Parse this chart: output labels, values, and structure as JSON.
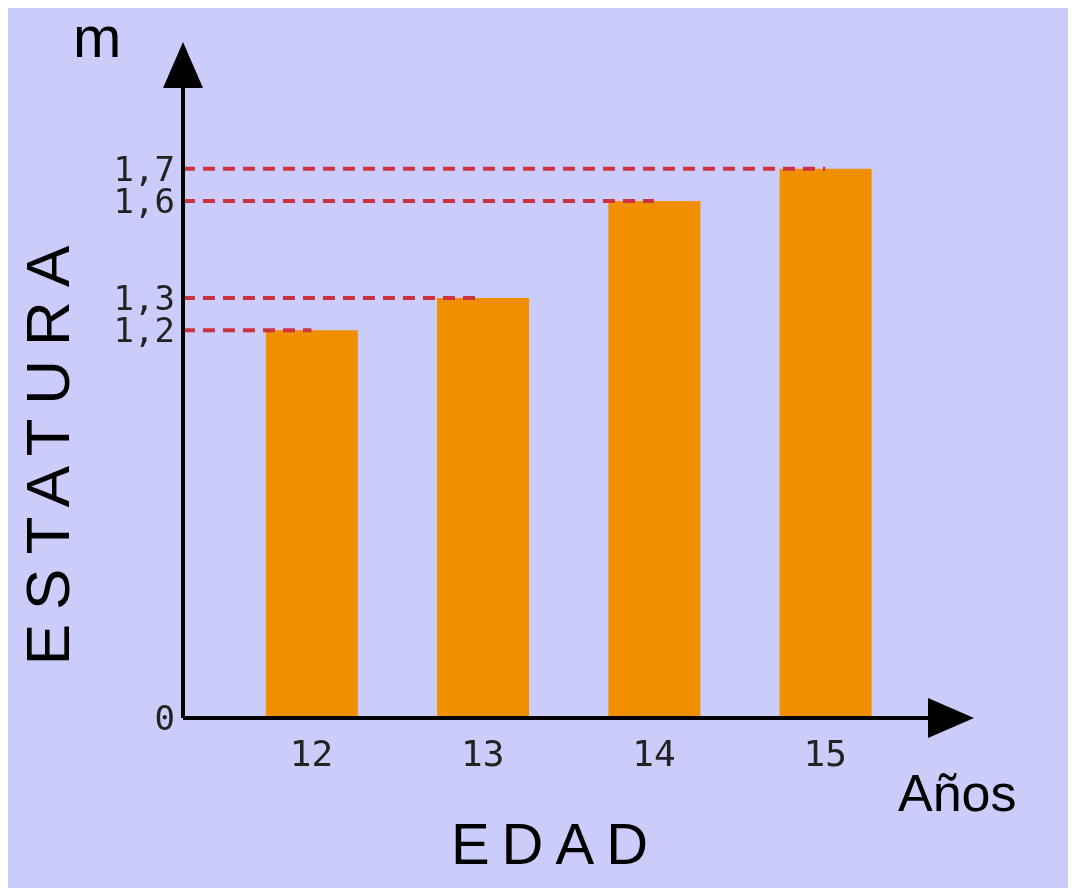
{
  "chart_data": {
    "type": "bar",
    "ylabel": "ESTATURA",
    "xlabel": "EDAD",
    "annotations": [
      "m",
      "Años"
    ],
    "categories": [
      "12",
      "13",
      "14",
      "15"
    ],
    "values": [
      1.2,
      1.3,
      1.6,
      1.7
    ],
    "color": "#f09000",
    "ylim": [
      0,
      1.95
    ],
    "yticks": [
      0,
      {
        "value": 1.2,
        "label": "1,2"
      },
      {
        "value": 1.3,
        "label": "1,3"
      },
      {
        "value": 1.6,
        "label": "1,6"
      },
      {
        "value": 1.7,
        "label": "1,7"
      }
    ],
    "ref_lines": [
      {
        "axis": "y",
        "value": 1.2,
        "color": "#cc3340",
        "line_style": "dashed"
      },
      {
        "axis": "y",
        "value": 1.3,
        "color": "#cc3340",
        "line_style": "dashed"
      },
      {
        "axis": "y",
        "value": 1.6,
        "color": "#cc3340",
        "line_style": "dashed"
      },
      {
        "axis": "y",
        "value": 1.7,
        "color": "#cc3340",
        "line_style": "dashed"
      }
    ],
    "grid": false,
    "legend": false
  }
}
